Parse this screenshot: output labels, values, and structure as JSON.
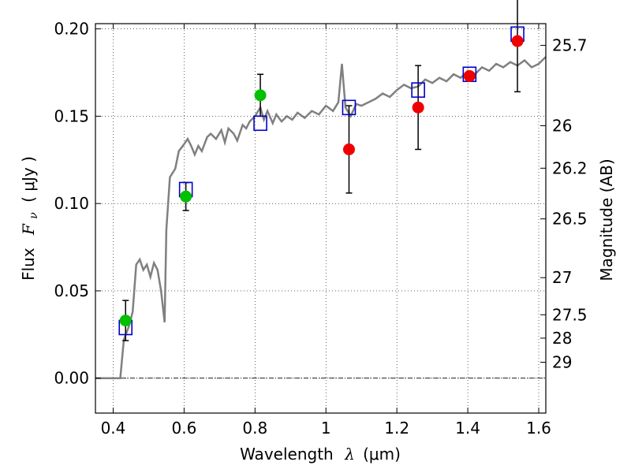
{
  "chart_data": {
    "type": "scatter",
    "xlabel": {
      "text": "Wavelength",
      "symbol": "λ",
      "unit": "(μm)"
    },
    "ylabel": {
      "text": "Flux",
      "symbol": "F",
      "subscript": "ν",
      "unit": "( μJy )"
    },
    "ylabel_right": "Magnitude (AB)",
    "xlim": [
      0.35,
      1.62
    ],
    "ylim": [
      -0.02,
      0.203
    ],
    "grid": true,
    "x_ticks": [
      {
        "value": 0.4,
        "label": "0.4"
      },
      {
        "value": 0.6,
        "label": "0.6"
      },
      {
        "value": 0.8,
        "label": "0.8"
      },
      {
        "value": 1.0,
        "label": "1"
      },
      {
        "value": 1.2,
        "label": "1.2"
      },
      {
        "value": 1.4,
        "label": "1.4"
      },
      {
        "value": 1.6,
        "label": "1.6"
      }
    ],
    "y_ticks": [
      {
        "value": 0.0,
        "label": "0.00"
      },
      {
        "value": 0.05,
        "label": "0.05"
      },
      {
        "value": 0.1,
        "label": "0.10"
      },
      {
        "value": 0.15,
        "label": "0.15"
      },
      {
        "value": 0.2,
        "label": "0.20"
      }
    ],
    "right_ticks": [
      {
        "value": 25.7,
        "label": "25.7"
      },
      {
        "value": 26.0,
        "label": "26"
      },
      {
        "value": 26.2,
        "label": "26.2"
      },
      {
        "value": 26.5,
        "label": "26.5"
      },
      {
        "value": 27.0,
        "label": "27"
      },
      {
        "value": 27.5,
        "label": "27.5"
      },
      {
        "value": 28.0,
        "label": "28"
      },
      {
        "value": 29.0,
        "label": "29"
      }
    ],
    "zero_line": true,
    "colors": {
      "model": "#808080",
      "detected": "#00c000",
      "limit": "#ee0000",
      "model_band": "#0000cc",
      "errorbar": "#000000"
    },
    "model_spectrum": [
      [
        0.35,
        0.0
      ],
      [
        0.42,
        0.0
      ],
      [
        0.43,
        0.022
      ],
      [
        0.445,
        0.03
      ],
      [
        0.455,
        0.038
      ],
      [
        0.465,
        0.065
      ],
      [
        0.475,
        0.068
      ],
      [
        0.485,
        0.062
      ],
      [
        0.495,
        0.065
      ],
      [
        0.505,
        0.058
      ],
      [
        0.515,
        0.066
      ],
      [
        0.525,
        0.062
      ],
      [
        0.535,
        0.05
      ],
      [
        0.545,
        0.032
      ],
      [
        0.55,
        0.085
      ],
      [
        0.56,
        0.115
      ],
      [
        0.575,
        0.12
      ],
      [
        0.585,
        0.13
      ],
      [
        0.6,
        0.134
      ],
      [
        0.61,
        0.137
      ],
      [
        0.62,
        0.133
      ],
      [
        0.63,
        0.128
      ],
      [
        0.64,
        0.133
      ],
      [
        0.65,
        0.13
      ],
      [
        0.665,
        0.138
      ],
      [
        0.675,
        0.14
      ],
      [
        0.69,
        0.137
      ],
      [
        0.705,
        0.142
      ],
      [
        0.715,
        0.135
      ],
      [
        0.725,
        0.143
      ],
      [
        0.74,
        0.14
      ],
      [
        0.75,
        0.136
      ],
      [
        0.765,
        0.145
      ],
      [
        0.775,
        0.143
      ],
      [
        0.785,
        0.147
      ],
      [
        0.8,
        0.15
      ],
      [
        0.815,
        0.155
      ],
      [
        0.825,
        0.148
      ],
      [
        0.835,
        0.153
      ],
      [
        0.85,
        0.146
      ],
      [
        0.86,
        0.151
      ],
      [
        0.875,
        0.147
      ],
      [
        0.89,
        0.15
      ],
      [
        0.905,
        0.148
      ],
      [
        0.92,
        0.152
      ],
      [
        0.94,
        0.149
      ],
      [
        0.96,
        0.153
      ],
      [
        0.98,
        0.151
      ],
      [
        1.0,
        0.156
      ],
      [
        1.02,
        0.153
      ],
      [
        1.035,
        0.158
      ],
      [
        1.045,
        0.18
      ],
      [
        1.055,
        0.155
      ],
      [
        1.07,
        0.15
      ],
      [
        1.085,
        0.157
      ],
      [
        1.1,
        0.156
      ],
      [
        1.12,
        0.158
      ],
      [
        1.14,
        0.16
      ],
      [
        1.16,
        0.163
      ],
      [
        1.18,
        0.161
      ],
      [
        1.2,
        0.165
      ],
      [
        1.22,
        0.168
      ],
      [
        1.24,
        0.166
      ],
      [
        1.26,
        0.167
      ],
      [
        1.28,
        0.171
      ],
      [
        1.3,
        0.169
      ],
      [
        1.32,
        0.172
      ],
      [
        1.34,
        0.17
      ],
      [
        1.36,
        0.174
      ],
      [
        1.38,
        0.172
      ],
      [
        1.4,
        0.176
      ],
      [
        1.42,
        0.174
      ],
      [
        1.44,
        0.178
      ],
      [
        1.46,
        0.176
      ],
      [
        1.48,
        0.18
      ],
      [
        1.5,
        0.178
      ],
      [
        1.52,
        0.181
      ],
      [
        1.54,
        0.179
      ],
      [
        1.56,
        0.182
      ],
      [
        1.58,
        0.178
      ],
      [
        1.6,
        0.18
      ],
      [
        1.62,
        0.184
      ]
    ],
    "model_band_flux": [
      {
        "x": 0.435,
        "y": 0.029
      },
      {
        "x": 0.605,
        "y": 0.108
      },
      {
        "x": 0.815,
        "y": 0.146
      },
      {
        "x": 1.065,
        "y": 0.155
      },
      {
        "x": 1.26,
        "y": 0.165
      },
      {
        "x": 1.405,
        "y": 0.174
      },
      {
        "x": 1.54,
        "y": 0.197
      }
    ],
    "observed": [
      {
        "x": 0.435,
        "y": 0.033,
        "err": 0.0115,
        "class": "detected"
      },
      {
        "x": 0.605,
        "y": 0.104,
        "err": 0.008,
        "class": "detected"
      },
      {
        "x": 0.815,
        "y": 0.162,
        "err": 0.012,
        "class": "detected"
      },
      {
        "x": 1.065,
        "y": 0.131,
        "err": 0.025,
        "class": "limit"
      },
      {
        "x": 1.26,
        "y": 0.155,
        "err": 0.024,
        "class": "limit"
      },
      {
        "x": 1.405,
        "y": 0.173,
        "err": 0.0,
        "class": "limit"
      },
      {
        "x": 1.54,
        "y": 0.193,
        "err": 0.029,
        "class": "limit"
      }
    ]
  }
}
